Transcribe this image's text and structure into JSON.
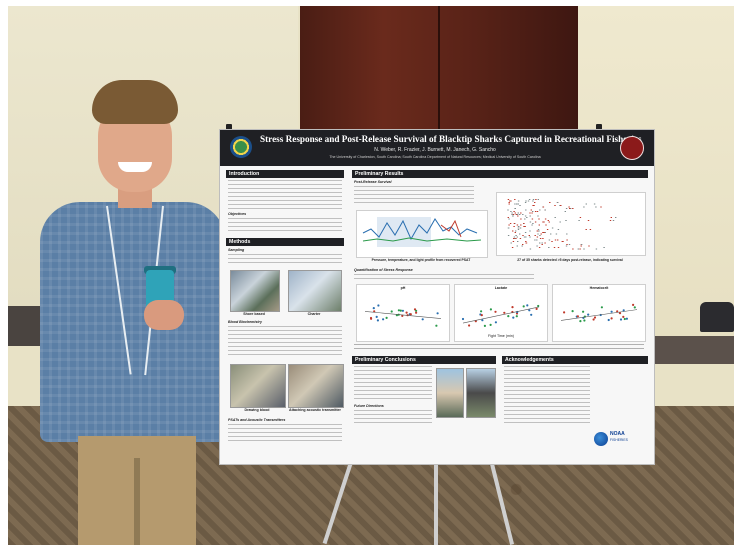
{
  "poster": {
    "title": "Stress Response and Post-Release Survival of Blacktip Sharks Captured in Recreational Fisheries",
    "authors": "N. Weber, R. Frazier, J. Burnett, M. Janech, G. Sancho",
    "affiliations": "The University of Charleston, South Carolina; South Carolina Department of Natural Resources; Medical University of South Carolina",
    "sections": {
      "introduction": "Introduction",
      "objectives": "Objectives",
      "methods": "Methods",
      "preliminary_results": "Preliminary Results",
      "preliminary_conclusions": "Preliminary Conclusions",
      "acknowledgements": "Acknowledgements"
    },
    "subheads": {
      "sampling": "Sampling",
      "blood_biochemistry": "Blood Biochemistry",
      "psat_tags": "PSATs and Acoustic Transmitters",
      "post_release_survival": "Post-Release Survival",
      "quantification": "Quantification of Stress Response",
      "future_directions": "Future Directions"
    },
    "photo_captions": {
      "shore": "Shore based",
      "charter": "Charter",
      "drawing_blood": "Drawing blood",
      "attaching": "Attaching acoustic transmitter"
    },
    "result_captions": {
      "psat_profile": "Pressure, temperature, and light profile from recovered PSAT",
      "detected": "27 of 35 sharks detected >5 days post-release, indicating survival"
    },
    "panel_labels": {
      "ph": "pH",
      "lactate": "Lactate",
      "hematocrit": "Hematocrit",
      "x_axis": "Fight Time (min)"
    },
    "noaa": {
      "name": "NOAA",
      "sub": "FISHERIES"
    }
  }
}
